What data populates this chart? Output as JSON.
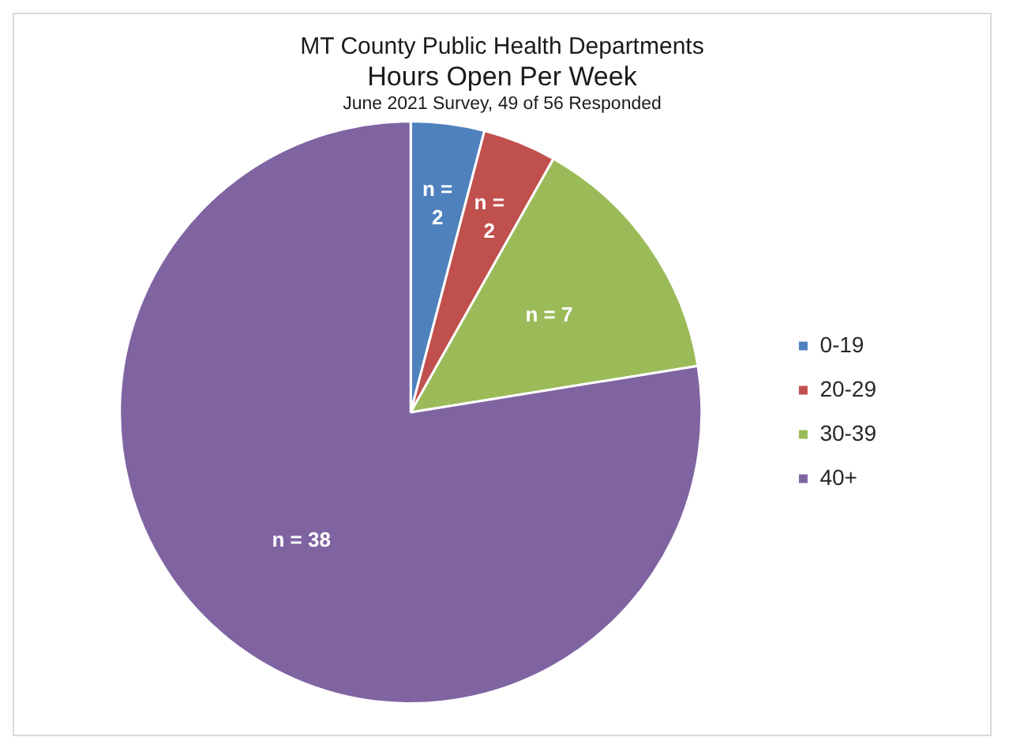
{
  "chart_data": {
    "type": "pie",
    "title": "MT County Public Health Departments",
    "subtitle": "Hours Open Per Week",
    "annotations": [
      "June 2021 Survey, 49 of 56 Responded"
    ],
    "categories": [
      "0-19",
      "20-29",
      "30-39",
      "40+"
    ],
    "values": [
      2,
      2,
      7,
      38
    ],
    "colors": [
      "#4f81bd",
      "#c0504d",
      "#9bbb59",
      "#8064a2"
    ],
    "value_labels": [
      "n = 2",
      "n = 2",
      "n = 7",
      "n = 38"
    ],
    "legend": "right"
  }
}
